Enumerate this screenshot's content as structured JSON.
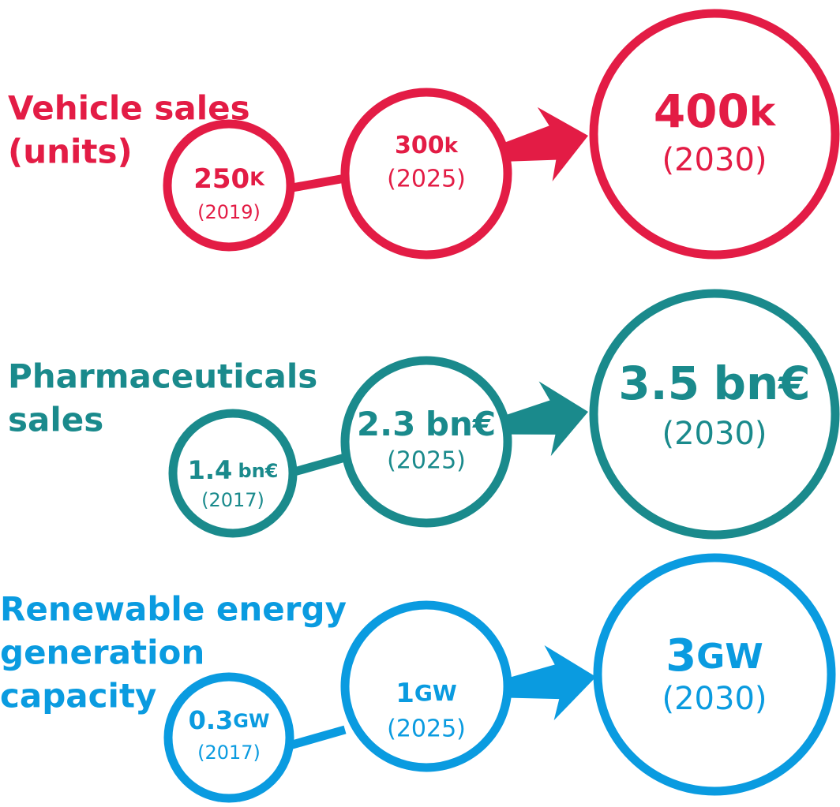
{
  "rows": [
    {
      "title": [
        "Vehicle sales",
        "(units)"
      ],
      "nodes": [
        {
          "value": "250",
          "unit": "K",
          "year": "(2019)"
        },
        {
          "value": "300",
          "unit": "k",
          "year": "(2025)"
        },
        {
          "value": "400",
          "unit": "k",
          "year": "(2030)"
        }
      ]
    },
    {
      "title": [
        "Pharmaceuticals",
        "sales"
      ],
      "nodes": [
        {
          "value": "1.4",
          "unit": "bn€",
          "year": "(2017)"
        },
        {
          "value": "2.3",
          "unit": "bn€",
          "year": "(2025)"
        },
        {
          "value": "3.5",
          "unit": "bn€",
          "year": "(2030)"
        }
      ]
    },
    {
      "title": [
        "Renewable energy",
        "generation",
        "capacity"
      ],
      "nodes": [
        {
          "value": "0.3",
          "unit": "GW",
          "year": "(2017)"
        },
        {
          "value": "1",
          "unit": "GW",
          "year": "(2025)"
        },
        {
          "value": "3",
          "unit": "GW",
          "year": "(2030)"
        }
      ]
    }
  ]
}
